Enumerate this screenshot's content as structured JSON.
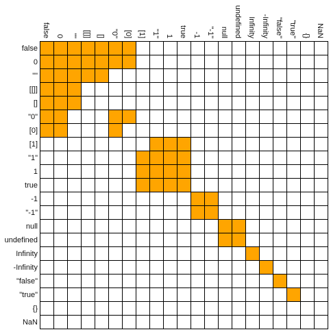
{
  "labels": [
    "false",
    "0",
    "\"\"",
    "[[]]",
    "[]",
    "\"0\"",
    "[0]",
    "[1]",
    "\"1\"",
    "1",
    "true",
    "-1",
    "\"-1\"",
    "null",
    "undefined",
    "Infinity",
    "-Infinity",
    "\"false\"",
    "\"true\"",
    "{}",
    "NaN"
  ],
  "colors": {
    "filled": "#ffa500",
    "empty": "#ffffff",
    "grid": "#000000",
    "text": "#111111"
  },
  "matrix": [
    [
      1,
      1,
      1,
      1,
      1,
      1,
      1,
      0,
      0,
      0,
      0,
      0,
      0,
      0,
      0,
      0,
      0,
      0,
      0,
      0,
      0
    ],
    [
      1,
      1,
      1,
      1,
      1,
      1,
      1,
      0,
      0,
      0,
      0,
      0,
      0,
      0,
      0,
      0,
      0,
      0,
      0,
      0,
      0
    ],
    [
      1,
      1,
      1,
      1,
      1,
      0,
      0,
      0,
      0,
      0,
      0,
      0,
      0,
      0,
      0,
      0,
      0,
      0,
      0,
      0,
      0
    ],
    [
      1,
      1,
      1,
      0,
      0,
      0,
      0,
      0,
      0,
      0,
      0,
      0,
      0,
      0,
      0,
      0,
      0,
      0,
      0,
      0,
      0
    ],
    [
      1,
      1,
      1,
      0,
      0,
      0,
      0,
      0,
      0,
      0,
      0,
      0,
      0,
      0,
      0,
      0,
      0,
      0,
      0,
      0,
      0
    ],
    [
      1,
      1,
      0,
      0,
      0,
      1,
      1,
      0,
      0,
      0,
      0,
      0,
      0,
      0,
      0,
      0,
      0,
      0,
      0,
      0,
      0
    ],
    [
      1,
      1,
      0,
      0,
      0,
      1,
      0,
      0,
      0,
      0,
      0,
      0,
      0,
      0,
      0,
      0,
      0,
      0,
      0,
      0,
      0
    ],
    [
      0,
      0,
      0,
      0,
      0,
      0,
      0,
      0,
      1,
      1,
      1,
      0,
      0,
      0,
      0,
      0,
      0,
      0,
      0,
      0,
      0
    ],
    [
      0,
      0,
      0,
      0,
      0,
      0,
      0,
      1,
      1,
      1,
      1,
      0,
      0,
      0,
      0,
      0,
      0,
      0,
      0,
      0,
      0
    ],
    [
      0,
      0,
      0,
      0,
      0,
      0,
      0,
      1,
      1,
      1,
      1,
      0,
      0,
      0,
      0,
      0,
      0,
      0,
      0,
      0,
      0
    ],
    [
      0,
      0,
      0,
      0,
      0,
      0,
      0,
      1,
      1,
      1,
      1,
      0,
      0,
      0,
      0,
      0,
      0,
      0,
      0,
      0,
      0
    ],
    [
      0,
      0,
      0,
      0,
      0,
      0,
      0,
      0,
      0,
      0,
      0,
      1,
      1,
      0,
      0,
      0,
      0,
      0,
      0,
      0,
      0
    ],
    [
      0,
      0,
      0,
      0,
      0,
      0,
      0,
      0,
      0,
      0,
      0,
      1,
      1,
      0,
      0,
      0,
      0,
      0,
      0,
      0,
      0
    ],
    [
      0,
      0,
      0,
      0,
      0,
      0,
      0,
      0,
      0,
      0,
      0,
      0,
      0,
      1,
      1,
      0,
      0,
      0,
      0,
      0,
      0
    ],
    [
      0,
      0,
      0,
      0,
      0,
      0,
      0,
      0,
      0,
      0,
      0,
      0,
      0,
      1,
      1,
      0,
      0,
      0,
      0,
      0,
      0
    ],
    [
      0,
      0,
      0,
      0,
      0,
      0,
      0,
      0,
      0,
      0,
      0,
      0,
      0,
      0,
      0,
      1,
      0,
      0,
      0,
      0,
      0
    ],
    [
      0,
      0,
      0,
      0,
      0,
      0,
      0,
      0,
      0,
      0,
      0,
      0,
      0,
      0,
      0,
      0,
      1,
      0,
      0,
      0,
      0
    ],
    [
      0,
      0,
      0,
      0,
      0,
      0,
      0,
      0,
      0,
      0,
      0,
      0,
      0,
      0,
      0,
      0,
      0,
      1,
      0,
      0,
      0
    ],
    [
      0,
      0,
      0,
      0,
      0,
      0,
      0,
      0,
      0,
      0,
      0,
      0,
      0,
      0,
      0,
      0,
      0,
      0,
      1,
      0,
      0
    ],
    [
      0,
      0,
      0,
      0,
      0,
      0,
      0,
      0,
      0,
      0,
      0,
      0,
      0,
      0,
      0,
      0,
      0,
      0,
      0,
      0,
      0
    ],
    [
      0,
      0,
      0,
      0,
      0,
      0,
      0,
      0,
      0,
      0,
      0,
      0,
      0,
      0,
      0,
      0,
      0,
      0,
      0,
      0,
      0
    ]
  ]
}
